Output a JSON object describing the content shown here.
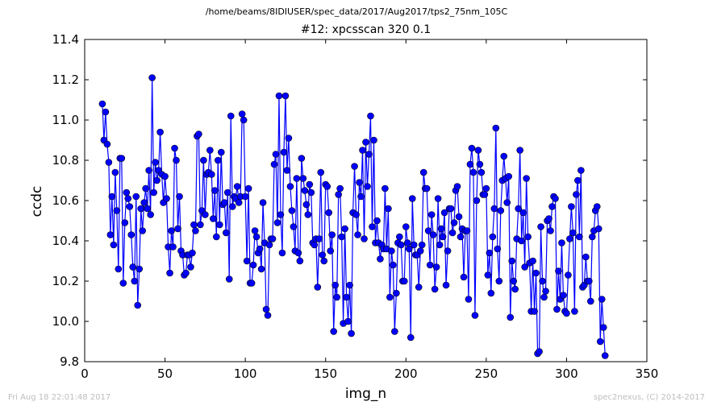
{
  "supertitle": "/home/beams/8IDIUSER/spec_data/2017/Aug2017/tps2_75nm_105C",
  "footer_left": "Fri Aug 18 22:01:48 2017",
  "footer_right": "spec2nexus, (C) 2014-2017",
  "chart_data": {
    "type": "line",
    "title": "#12: xpcsscan 320 0.1",
    "xlabel": "img_n",
    "ylabel": "ccdc",
    "xlim": [
      0,
      350
    ],
    "ylim": [
      9.8,
      11.4
    ],
    "xticks": [
      "0",
      "50",
      "100",
      "150",
      "200",
      "250",
      "300",
      "350"
    ],
    "yticks": [
      "9.8",
      "10.0",
      "10.2",
      "10.4",
      "10.6",
      "10.8",
      "11.0",
      "11.2",
      "11.4"
    ],
    "grid": false,
    "line_color": "#0000ff",
    "marker": "circle",
    "x_start": 11,
    "y": [
      11.08,
      10.9,
      11.04,
      10.88,
      10.79,
      10.43,
      10.62,
      10.38,
      10.74,
      10.55,
      10.26,
      10.81,
      10.81,
      10.19,
      10.49,
      10.64,
      10.61,
      10.57,
      10.43,
      10.27,
      10.2,
      10.62,
      10.08,
      10.26,
      10.56,
      10.45,
      10.59,
      10.66,
      10.56,
      10.75,
      10.53,
      11.21,
      10.64,
      10.79,
      10.7,
      10.75,
      10.94,
      10.73,
      10.59,
      10.72,
      10.61,
      10.37,
      10.24,
      10.45,
      10.37,
      10.86,
      10.8,
      10.46,
      10.62,
      10.35,
      10.33,
      10.23,
      10.24,
      10.33,
      10.33,
      10.27,
      10.34,
      10.48,
      10.45,
      10.92,
      10.93,
      10.48,
      10.55,
      10.8,
      10.53,
      10.73,
      10.74,
      10.85,
      10.73,
      10.51,
      10.65,
      10.42,
      10.8,
      10.48,
      10.84,
      10.58,
      10.59,
      10.44,
      10.64,
      10.21,
      11.02,
      10.57,
      10.62,
      10.61,
      10.67,
      10.59,
      10.62,
      11.03,
      11.0,
      10.62,
      10.3,
      10.66,
      10.19,
      10.19,
      10.28,
      10.45,
      10.42,
      10.34,
      10.36,
      10.26,
      10.59,
      10.39,
      10.06,
      10.03,
      10.38,
      10.41,
      10.41,
      10.78,
      10.83,
      10.49,
      11.12,
      10.53,
      10.34,
      10.84,
      11.12,
      10.75,
      10.91,
      10.67,
      10.55,
      10.47,
      10.35,
      10.71,
      10.34,
      10.3,
      10.81,
      10.71,
      10.65,
      10.58,
      10.53,
      10.68,
      10.64,
      10.39,
      10.38,
      10.41,
      10.17,
      10.41,
      10.74,
      10.33,
      10.3,
      10.68,
      10.67,
      10.54,
      10.35,
      10.43,
      9.95,
      10.18,
      10.12,
      10.63,
      10.66,
      10.42,
      9.99,
      10.46,
      10.12,
      10.0,
      10.18,
      9.94,
      10.54,
      10.77,
      10.53,
      10.43,
      10.69,
      10.62,
      10.85,
      10.41,
      10.89,
      10.67,
      10.83,
      11.02,
      10.47,
      10.9,
      10.39,
      10.5,
      10.39,
      10.31,
      10.38,
      10.36,
      10.66,
      10.36,
      10.56,
      10.12,
      10.35,
      10.28,
      9.95,
      10.14,
      10.39,
      10.42,
      10.38,
      10.2,
      10.2,
      10.47,
      10.39,
      10.36,
      9.92,
      10.61,
      10.38,
      10.33,
      10.33,
      10.17,
      10.35,
      10.38,
      10.74,
      10.66,
      10.66,
      10.45,
      10.28,
      10.53,
      10.43,
      10.16,
      10.27,
      10.61,
      10.38,
      10.46,
      10.42,
      10.54,
      10.18,
      10.35,
      10.56,
      10.56,
      10.44,
      10.49,
      10.65,
      10.67,
      10.52,
      10.42,
      10.46,
      10.22,
      10.45,
      10.45,
      10.11,
      10.78,
      10.86,
      10.74,
      10.03,
      10.6,
      10.85,
      10.78,
      10.74,
      10.63,
      10.63,
      10.66,
      10.23,
      10.34,
      10.14,
      10.42,
      10.56,
      10.96,
      10.36,
      10.2,
      10.55,
      10.7,
      10.82,
      10.71,
      10.59,
      10.72,
      10.02,
      10.3,
      10.2,
      10.16,
      10.41,
      10.56,
      10.85,
      10.4,
      10.54,
      10.27,
      10.71,
      10.42,
      10.29,
      10.05,
      10.3,
      10.05,
      10.24,
      9.84,
      9.85,
      10.47,
      10.2,
      10.12,
      10.15,
      10.5,
      10.51,
      10.45,
      10.57,
      10.62,
      10.61,
      10.06,
      10.25,
      10.11,
      10.39,
      10.13,
      10.05,
      10.04,
      10.23,
      10.41,
      10.57,
      10.44,
      10.05,
      10.63,
      10.7,
      10.42,
      10.75,
      10.17,
      10.18,
      10.32,
      10.2,
      10.2,
      10.1,
      10.42,
      10.45,
      10.55,
      10.57,
      10.46,
      9.9,
      10.11,
      9.97,
      9.83
    ]
  }
}
